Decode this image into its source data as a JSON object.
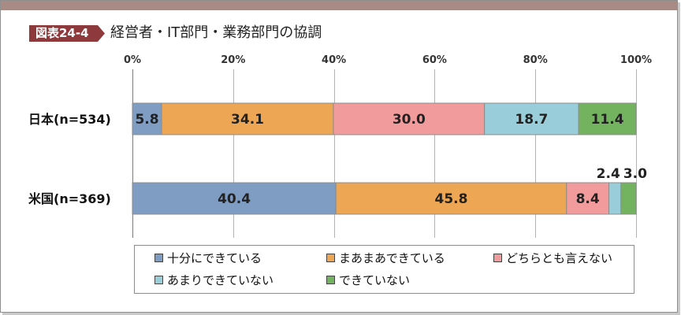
{
  "header": {
    "figure_label": "図表24-4"
  },
  "chart_data": {
    "type": "bar",
    "horizontal": true,
    "stacked": true,
    "percent": true,
    "title": "経営者・IT部門・業務部門の協調",
    "categories": [
      "日本(n=534)",
      "米国(n=369)"
    ],
    "series": [
      {
        "name": "十分にできている",
        "color": "#7f9cc2",
        "values": [
          5.8,
          40.4
        ]
      },
      {
        "name": "まあまあできている",
        "color": "#eda653",
        "values": [
          34.1,
          45.8
        ]
      },
      {
        "name": "どちらとも言えない",
        "color": "#f19b9c",
        "values": [
          30.0,
          8.4
        ]
      },
      {
        "name": "あまりできていない",
        "color": "#99cdd9",
        "values": [
          18.7,
          2.4
        ]
      },
      {
        "name": "できていない",
        "color": "#73b25f",
        "values": [
          11.4,
          3.0
        ]
      }
    ],
    "xlim": [
      0,
      100
    ],
    "x_ticks": [
      "0%",
      "20%",
      "40%",
      "60%",
      "80%",
      "100%"
    ],
    "grid": true,
    "legend_position": "bottom"
  },
  "colors": {
    "top_band": "#a98b85",
    "badge": "#8e3a3c"
  }
}
